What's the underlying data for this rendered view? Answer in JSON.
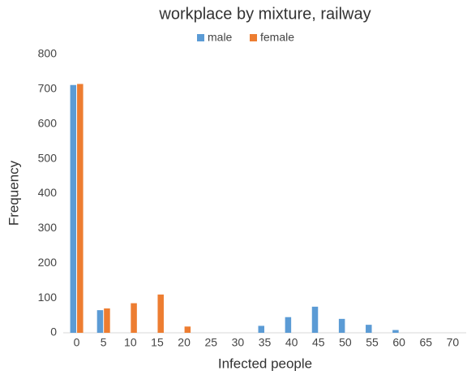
{
  "chart_data": {
    "type": "bar",
    "title": "workplace by mixture, railway",
    "x_label": "Infected people",
    "y_label": "Frequency",
    "categories": [
      "0",
      "5",
      "10",
      "15",
      "20",
      "25",
      "30",
      "35",
      "40",
      "45",
      "50",
      "55",
      "60",
      "65",
      "70"
    ],
    "series": [
      {
        "name": "male",
        "color": "#5b9bd5",
        "values": [
          712,
          65,
          0,
          0,
          0,
          0,
          0,
          20,
          45,
          75,
          40,
          23,
          8,
          0,
          0
        ]
      },
      {
        "name": "female",
        "color": "#ed7d31",
        "values": [
          715,
          70,
          85,
          110,
          18,
          0,
          0,
          0,
          0,
          0,
          0,
          0,
          0,
          0,
          0
        ]
      }
    ],
    "ylim": [
      0,
      800
    ],
    "yticks": [
      0,
      100,
      200,
      300,
      400,
      500,
      600,
      700,
      800
    ],
    "grid": false,
    "legend": "top"
  }
}
